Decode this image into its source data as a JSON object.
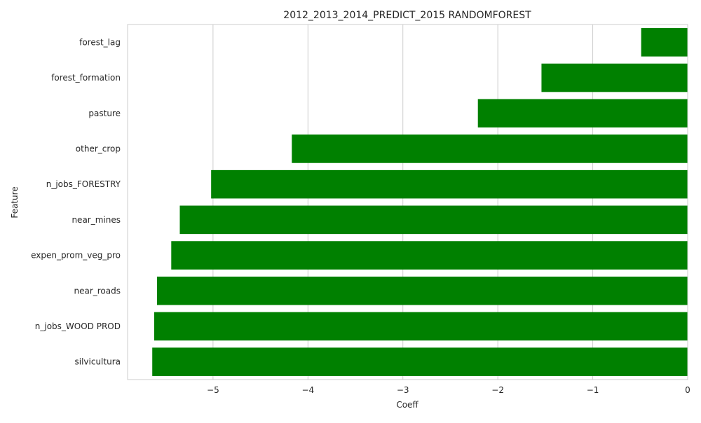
{
  "chart_data": {
    "type": "bar",
    "orientation": "horizontal",
    "title": "2012_2013_2014_PREDICT_2015 RANDOMFOREST",
    "xlabel": "Coeff",
    "ylabel": "Feature",
    "categories": [
      "forest_lag",
      "forest_formation",
      "pasture",
      "other_crop",
      "n_jobs_FORESTRY",
      "near_mines",
      "expen_prom_veg_pro",
      "near_roads",
      "n_jobs_WOOD PROD",
      "silvicultura"
    ],
    "values": [
      -0.49,
      -1.54,
      -2.21,
      -4.17,
      -5.02,
      -5.35,
      -5.44,
      -5.59,
      -5.62,
      -5.64
    ],
    "xlim": [
      -5.9,
      0
    ],
    "xticks": [
      -5,
      -4,
      -3,
      -2,
      -1,
      0
    ],
    "xtick_labels": [
      "−5",
      "−4",
      "−3",
      "−2",
      "−1",
      "0"
    ],
    "grid": true,
    "bar_color": "#008000",
    "grid_color": "#cccccc",
    "spine_color": "#cccccc"
  }
}
